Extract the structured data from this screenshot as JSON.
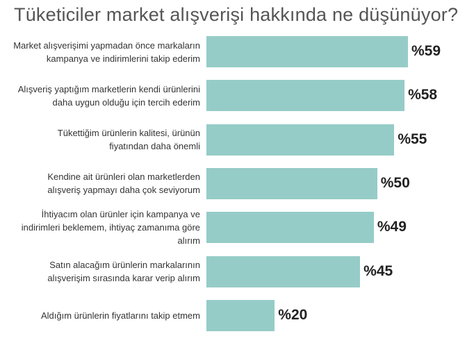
{
  "chart_data": {
    "type": "bar",
    "orientation": "horizontal",
    "title": "Tüketiciler market alışverişi hakkında ne düşünüyor?",
    "bar_color": "#96ccc7",
    "categories": [
      "Market alışverişimi yapmadan önce markaların kampanya ve indirimlerini takip ederim",
      "Alışveriş yaptığım marketlerin kendi ürünlerini daha uygun olduğu için tercih ederim",
      "Tükettiğim ürünlerin kalitesi, ürünün fiyatından daha önemli",
      "Kendine ait ürünleri olan marketlerden alışveriş yapmayı daha çok seviyorum",
      "İhtiyacım olan ürünler için kampanya ve indirimleri beklemem, ihtiyaç zamanıma göre alırım",
      "Satın alacağım ürünlerin markalarının alışverişim sırasında karar verip alırım",
      "Aldığım ürünlerin fiyatlarını takip etmem"
    ],
    "label_lines": [
      [
        "Market alışverişimi yapmadan önce markaların",
        "kampanya ve indirimlerini takip ederim"
      ],
      [
        "Alışveriş yaptığım marketlerin kendi ürünlerini",
        "daha uygun olduğu için tercih ederim"
      ],
      [
        "Tükettiğim ürünlerin kalitesi, ürünün",
        "fiyatından daha önemli"
      ],
      [
        "Kendine ait ürünleri olan marketlerden",
        "alışveriş yapmayı daha çok seviyorum"
      ],
      [
        "İhtiyacım olan ürünler için kampanya ve",
        "indirimleri beklemem, ihtiyaç zamanıma göre alırım"
      ],
      [
        "Satın alacağım ürünlerin markalarının",
        "alışverişim sırasında karar verip alırım"
      ],
      [
        "Aldığım ürünlerin fiyatlarını takip etmem"
      ]
    ],
    "values": [
      59,
      58,
      55,
      50,
      49,
      45,
      20
    ],
    "value_labels": [
      "%59",
      "%58",
      "%55",
      "%50",
      "%49",
      "%45",
      "%20"
    ]
  }
}
